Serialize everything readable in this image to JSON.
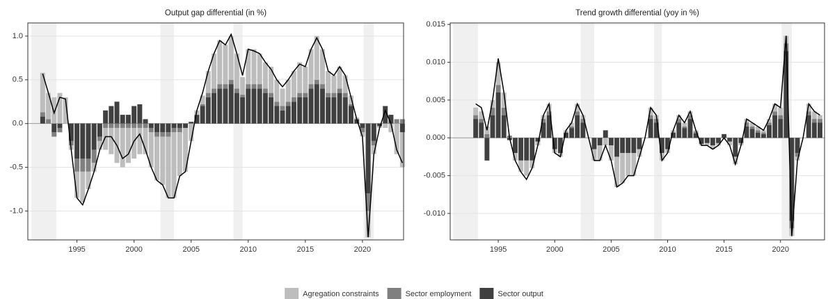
{
  "chart_data": [
    {
      "type": "bar",
      "title": "Output gap differential (in %)",
      "x": [
        1992,
        1992.5,
        1993,
        1993.5,
        1994,
        1994.5,
        1995,
        1995.5,
        1996,
        1996.5,
        1997,
        1997.5,
        1998,
        1998.5,
        1999,
        1999.5,
        2000,
        2000.5,
        2001,
        2001.5,
        2002,
        2002.5,
        2003,
        2003.5,
        2004,
        2004.5,
        2005,
        2005.5,
        2006,
        2006.5,
        2007,
        2007.5,
        2008,
        2008.5,
        2009,
        2009.5,
        2010,
        2010.5,
        2011,
        2011.5,
        2012,
        2012.5,
        2013,
        2013.5,
        2014,
        2014.5,
        2015,
        2015.5,
        2016,
        2016.5,
        2017,
        2017.5,
        2018,
        2018.5,
        2019,
        2019.5,
        2020,
        2020.5,
        2021,
        2021.5,
        2022,
        2022.5,
        2023,
        2023.5
      ],
      "series": [
        {
          "name": "Agregation constraints",
          "color": "#bdbdbd",
          "values": [
            0.45,
            0.3,
            0.3,
            0.35,
            0.3,
            -0.05,
            -0.3,
            -0.35,
            -0.2,
            -0.1,
            -0.1,
            -0.25,
            -0.3,
            -0.4,
            -0.45,
            -0.4,
            -0.35,
            -0.3,
            -0.3,
            -0.4,
            -0.5,
            -0.55,
            -0.7,
            -0.75,
            -0.5,
            -0.5,
            -0.2,
            0.05,
            0.1,
            0.25,
            0.4,
            0.5,
            0.45,
            0.5,
            0.4,
            0.2,
            0.4,
            0.4,
            0.35,
            0.3,
            0.3,
            0.25,
            0.2,
            0.25,
            0.3,
            0.35,
            0.3,
            0.4,
            0.5,
            0.4,
            0.25,
            0.2,
            0.25,
            0.2,
            0.1,
            0.02,
            -0.05,
            -0.3,
            -0.1,
            -0.02,
            -0.05,
            -0.1,
            -0.35,
            -0.4
          ]
        },
        {
          "name": "Sector employment",
          "color": "#808080",
          "values": [
            0.05,
            0.05,
            -0.05,
            -0.05,
            0,
            -0.05,
            -0.15,
            -0.15,
            -0.15,
            -0.15,
            -0.05,
            -0.05,
            -0.05,
            -0.05,
            -0.05,
            -0.05,
            -0.05,
            -0.05,
            -0.05,
            -0.05,
            -0.05,
            -0.05,
            -0.05,
            -0.05,
            -0.05,
            0,
            0,
            0,
            0.02,
            0.05,
            0.05,
            0.05,
            0.05,
            0.05,
            0.05,
            0.03,
            0.05,
            0.05,
            0.05,
            0.05,
            0.05,
            0.05,
            0.05,
            0.05,
            0.05,
            0.05,
            0.05,
            0.05,
            0.05,
            0.05,
            0.05,
            0.05,
            0.05,
            0.05,
            0.02,
            0,
            -0.05,
            -0.2,
            -0.05,
            0,
            0,
            0,
            0.05,
            0.05
          ]
        },
        {
          "name": "Sector output",
          "color": "#404040",
          "values": [
            0.08,
            0,
            -0.1,
            -0.05,
            0,
            -0.2,
            -0.4,
            -0.4,
            -0.4,
            -0.3,
            -0.15,
            0.15,
            0.2,
            0.25,
            0.1,
            0.1,
            0.2,
            0.22,
            0.05,
            -0.05,
            -0.1,
            -0.1,
            -0.1,
            -0.05,
            -0.05,
            -0.05,
            0.02,
            0.1,
            0.2,
            0.3,
            0.35,
            0.4,
            0.4,
            0.45,
            0.35,
            0.3,
            0.4,
            0.4,
            0.4,
            0.35,
            0.3,
            0.2,
            0.15,
            0.2,
            0.25,
            0.3,
            0.3,
            0.4,
            0.45,
            0.4,
            0.3,
            0.3,
            0.35,
            0.3,
            0.2,
            0.05,
            -0.05,
            -0.8,
            -0.2,
            -0.03,
            0.2,
            0.1,
            0,
            -0.1
          ]
        }
      ],
      "line": {
        "color": "#000000",
        "values": [
          0.57,
          0.35,
          0.12,
          0.3,
          0.28,
          -0.3,
          -0.85,
          -0.93,
          -0.75,
          -0.55,
          -0.3,
          -0.15,
          -0.15,
          -0.25,
          -0.4,
          -0.35,
          -0.2,
          -0.12,
          -0.3,
          -0.5,
          -0.65,
          -0.7,
          -0.85,
          -0.85,
          -0.6,
          -0.55,
          -0.2,
          0.15,
          0.35,
          0.6,
          0.8,
          0.95,
          0.9,
          1.02,
          0.8,
          0.55,
          0.85,
          0.83,
          0.8,
          0.7,
          0.62,
          0.5,
          0.42,
          0.5,
          0.6,
          0.68,
          0.65,
          0.85,
          0.98,
          0.85,
          0.6,
          0.55,
          0.65,
          0.55,
          0.3,
          0.05,
          -0.15,
          -1.3,
          -0.35,
          -0.05,
          0.15,
          0,
          -0.3,
          -0.45
        ]
      },
      "shaded": [
        [
          1991,
          1993.2
        ],
        [
          2002.3,
          2003.5
        ],
        [
          2008.7,
          2009.5
        ],
        [
          2020.1,
          2021
        ]
      ],
      "xlim": [
        1990.7,
        2023.6
      ],
      "xticks": [
        1995,
        2000,
        2005,
        2010,
        2015,
        2020
      ],
      "ylim": [
        -1.33,
        1.15
      ],
      "yticks": [
        {
          "value": -1,
          "label": "-1.0"
        },
        -0.5,
        {
          "value": 0,
          "label": "0.0"
        },
        0.5,
        {
          "value": 1,
          "label": "1.0"
        }
      ],
      "grid": true
    },
    {
      "type": "bar",
      "title": "Trend growth differential (yoy in %)",
      "x": [
        1992,
        1992.5,
        1993,
        1993.5,
        1994,
        1994.5,
        1995,
        1995.5,
        1996,
        1996.5,
        1997,
        1997.5,
        1998,
        1998.5,
        1999,
        1999.5,
        2000,
        2000.5,
        2001,
        2001.5,
        2002,
        2002.5,
        2003,
        2003.5,
        2004,
        2004.5,
        2005,
        2005.5,
        2006,
        2006.5,
        2007,
        2007.5,
        2008,
        2008.5,
        2009,
        2009.5,
        2010,
        2010.5,
        2011,
        2011.5,
        2012,
        2012.5,
        2013,
        2013.5,
        2014,
        2014.5,
        2015,
        2015.5,
        2016,
        2016.5,
        2017,
        2017.5,
        2018,
        2018.5,
        2019,
        2019.5,
        2020,
        2020.5,
        2021,
        2021.5,
        2022,
        2022.5,
        2023,
        2023.5
      ],
      "series": [
        {
          "name": "Agregation constraints",
          "color": "#bdbdbd",
          "values": [
            null,
            null,
            0.001,
            0.001,
            0.001,
            0.001,
            0.003,
            0.002,
            0,
            -0.001,
            -0.0015,
            -0.002,
            -0.001,
            -0.0005,
            0.0005,
            0.001,
            -0.0005,
            -0.0005,
            0.0003,
            0.0005,
            0.001,
            0.0005,
            0,
            -0.0015,
            -0.002,
            -0.001,
            -0.002,
            -0.004,
            -0.004,
            -0.003,
            -0.003,
            -0.001,
            0,
            0.001,
            0.0005,
            -0.001,
            -0.0005,
            0.0003,
            0.0005,
            0.0005,
            0.0005,
            0.0002,
            -0.0002,
            -0.0003,
            -0.0005,
            -0.0003,
            0,
            -0.0005,
            -0.001,
            -0.0003,
            0.0005,
            0.0005,
            0.0005,
            0.0003,
            0.0005,
            0.001,
            0.001,
            0.001,
            -0.001,
            -0.0005,
            0,
            0.001,
            0.001,
            0.0005
          ]
        },
        {
          "name": "Sector employment",
          "color": "#808080",
          "values": [
            null,
            null,
            0.0005,
            0.0005,
            0.0005,
            0.001,
            0.001,
            0.001,
            0.0003,
            0,
            0,
            0,
            0,
            0,
            0.0005,
            0.0005,
            0,
            0,
            0,
            0.0002,
            0.0005,
            0.0005,
            0,
            0,
            0,
            0,
            0,
            0,
            0,
            0,
            0,
            0,
            0,
            0.0005,
            0.0005,
            0,
            0,
            0,
            0.0005,
            0.0002,
            0.0005,
            0.0002,
            0,
            0,
            0,
            0,
            0,
            0,
            0,
            0,
            0.0005,
            0.0003,
            0.0003,
            0.0002,
            0.0003,
            0.0005,
            0.0005,
            0.001,
            -0.001,
            -0.0005,
            0,
            0.0005,
            0.0005,
            0.0005
          ]
        },
        {
          "name": "Sector output",
          "color": "#404040",
          "values": [
            null,
            null,
            0.0025,
            0.002,
            -0.003,
            0.003,
            0.006,
            0.003,
            -0.0003,
            -0.002,
            -0.003,
            -0.003,
            -0.003,
            -0.0005,
            0.002,
            0.003,
            -0.0015,
            -0.002,
            0.0007,
            0.0013,
            0.003,
            0.002,
            0,
            -0.0015,
            -0.001,
            0.001,
            -0.001,
            -0.0025,
            -0.002,
            -0.002,
            -0.002,
            -0.0015,
            0,
            0.0025,
            0.002,
            -0.002,
            -0.0015,
            0.0007,
            0.002,
            0.0013,
            0.0025,
            0.0006,
            -0.0008,
            -0.0007,
            -0.001,
            -0.0007,
            0.0005,
            -0.0005,
            -0.0025,
            -0.0007,
            0.0015,
            0.0012,
            0.0007,
            0.0005,
            0.0017,
            0.003,
            0.0025,
            0.0115,
            -0.011,
            -0.002,
            0,
            0.003,
            0.002,
            0.002
          ]
        }
      ],
      "line": {
        "color": "#000000",
        "values": [
          null,
          null,
          0.0045,
          0.004,
          0.001,
          0.005,
          0.0105,
          0.006,
          0,
          -0.003,
          -0.0045,
          -0.0055,
          -0.004,
          -0.001,
          0.003,
          0.0045,
          -0.002,
          -0.0025,
          0.001,
          0.002,
          0.0045,
          0.003,
          0,
          -0.003,
          -0.003,
          -0.001,
          -0.003,
          -0.0065,
          -0.006,
          -0.005,
          -0.005,
          -0.0025,
          0,
          0.004,
          0.003,
          -0.003,
          -0.002,
          0.001,
          0.003,
          0.002,
          0.0035,
          0.001,
          -0.001,
          -0.001,
          -0.0015,
          -0.001,
          0,
          -0.001,
          -0.0035,
          -0.001,
          0.0025,
          0.002,
          0.0015,
          0.001,
          0.0025,
          0.0045,
          0.004,
          0.0135,
          -0.013,
          -0.003,
          0,
          0.0045,
          0.0035,
          0.003
        ]
      },
      "shaded": [
        [
          1991,
          1993.2
        ],
        [
          2002.3,
          2003.5
        ],
        [
          2008.8,
          2009.5
        ],
        [
          2020.1,
          2021
        ]
      ],
      "xlim": [
        1990.74,
        2023.9
      ],
      "xticks": [
        1995,
        2000,
        2005,
        2010,
        2015,
        2020
      ],
      "ylim": [
        -0.0135,
        0.0152
      ],
      "yticks": [
        {
          "value": -0.01,
          "label": "-0.010"
        },
        -0.005,
        {
          "value": 0,
          "label": "0.000"
        },
        0.005,
        {
          "value": 0.01,
          "label": "0.010"
        },
        0.015
      ],
      "grid": true
    }
  ]
}
